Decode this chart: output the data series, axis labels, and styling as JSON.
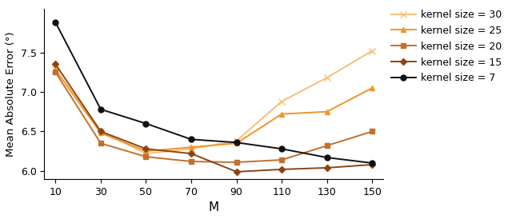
{
  "x": [
    10,
    30,
    50,
    70,
    90,
    110,
    130,
    150
  ],
  "series": [
    {
      "label": "kernel size = 30",
      "color": "#F5C07A",
      "marker": "x",
      "markersize": 6,
      "values": [
        7.28,
        6.5,
        6.22,
        6.28,
        6.38,
        6.88,
        7.18,
        7.52
      ]
    },
    {
      "label": "kernel size = 25",
      "color": "#F0952A",
      "marker": "^",
      "markersize": 5,
      "values": [
        7.28,
        6.48,
        6.25,
        6.3,
        6.35,
        6.72,
        6.75,
        7.05
      ]
    },
    {
      "label": "kernel size = 20",
      "color": "#C07030",
      "marker": "s",
      "markersize": 5,
      "values": [
        7.25,
        6.35,
        6.18,
        6.12,
        6.11,
        6.14,
        6.32,
        6.5
      ]
    },
    {
      "label": "kernel size = 15",
      "color": "#8B4513",
      "marker": "D",
      "markersize": 4,
      "values": [
        7.35,
        6.5,
        6.28,
        6.22,
        5.99,
        6.02,
        6.04,
        6.08
      ]
    },
    {
      "label": "kernel size = 7",
      "color": "#111111",
      "marker": "o",
      "markersize": 5,
      "values": [
        7.88,
        6.78,
        6.6,
        6.4,
        6.36,
        6.28,
        6.17,
        6.1
      ]
    }
  ],
  "xlabel": "M",
  "ylabel": "Mean Absolute Error (°)",
  "ylim": [
    5.9,
    8.05
  ],
  "xlim": [
    5,
    155
  ],
  "xticks": [
    10,
    30,
    50,
    70,
    90,
    110,
    130,
    150
  ],
  "yticks": [
    6.0,
    6.5,
    7.0,
    7.5
  ],
  "figsize": [
    6.4,
    2.74
  ],
  "dpi": 100
}
